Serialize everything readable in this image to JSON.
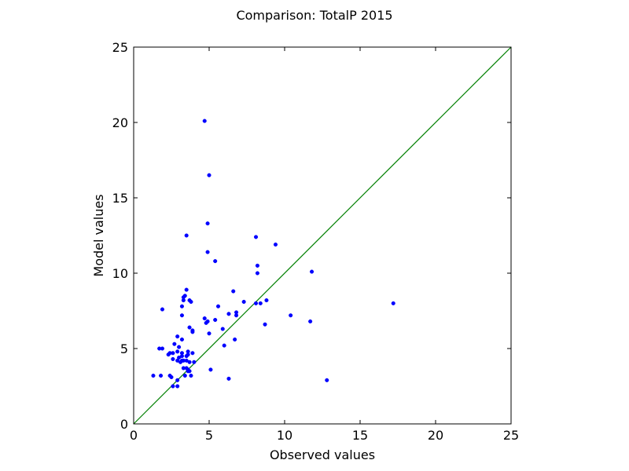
{
  "chart_data": {
    "type": "scatter",
    "title": "Comparison: TotalP 2015",
    "xlabel": "Observed values",
    "ylabel": "Model values",
    "xlim": [
      0,
      25
    ],
    "ylim": [
      0,
      25
    ],
    "xticks": [
      "0",
      "5",
      "10",
      "15",
      "20",
      "25"
    ],
    "yticks": [
      "0",
      "5",
      "10",
      "15",
      "20",
      "25"
    ],
    "grid": false,
    "legend": "none",
    "colors": {
      "points": "#0000ff",
      "reference_line": "#008000",
      "axes": "#000000"
    },
    "reference_line": {
      "x": [
        0,
        25
      ],
      "y": [
        0,
        25
      ]
    },
    "series": [
      {
        "x": [
          4.7,
          5.0,
          4.9,
          9.4,
          8.1,
          3.5,
          4.9,
          5.4,
          8.2,
          8.2,
          11.8,
          3.5,
          6.6,
          3.4,
          3.3,
          3.3,
          3.7,
          3.8,
          7.3,
          8.1,
          8.4,
          8.8,
          3.2,
          5.6,
          1.9,
          6.3,
          6.8,
          6.8,
          17.2,
          10.4,
          4.7,
          5.4,
          4.9,
          4.8,
          11.7,
          8.7,
          3.7,
          5.9,
          3.9,
          3.9,
          5.0,
          3.2,
          2.9,
          6.7,
          3.2,
          3.0,
          2.7,
          1.7,
          1.9,
          6.0,
          3.6,
          3.9,
          3.6,
          3.2,
          2.9,
          2.6,
          2.4,
          2.3,
          3.5,
          3.2,
          3.0,
          2.9,
          3.7,
          3.5,
          3.2,
          2.6,
          3.3,
          3.1,
          3.5,
          3.6,
          4.0,
          5.1,
          3.3,
          3.6,
          3.7,
          1.3,
          1.8,
          2.4,
          2.5,
          3.4,
          3.8,
          2.9,
          6.3,
          12.8,
          2.9,
          2.6
        ],
        "y": [
          20.1,
          16.5,
          13.3,
          11.9,
          12.4,
          12.5,
          11.4,
          10.8,
          10.5,
          10.0,
          10.1,
          8.9,
          8.8,
          8.5,
          8.4,
          8.2,
          8.2,
          8.1,
          8.1,
          8.0,
          8.0,
          8.2,
          7.8,
          7.8,
          7.6,
          7.3,
          7.4,
          7.2,
          8.0,
          7.2,
          7.0,
          6.9,
          6.8,
          6.7,
          6.8,
          6.6,
          6.4,
          6.3,
          6.1,
          6.2,
          6.0,
          7.2,
          5.8,
          5.6,
          5.6,
          5.1,
          5.3,
          5.0,
          5.0,
          5.2,
          4.8,
          4.7,
          4.6,
          4.7,
          4.8,
          4.7,
          4.7,
          4.6,
          4.5,
          4.5,
          4.4,
          4.2,
          4.1,
          4.2,
          4.2,
          4.3,
          4.2,
          4.1,
          3.7,
          3.6,
          4.1,
          3.6,
          3.7,
          3.5,
          3.5,
          3.2,
          3.2,
          3.2,
          3.1,
          3.2,
          3.2,
          2.9,
          3.0,
          2.9,
          2.5,
          2.5
        ]
      }
    ]
  }
}
